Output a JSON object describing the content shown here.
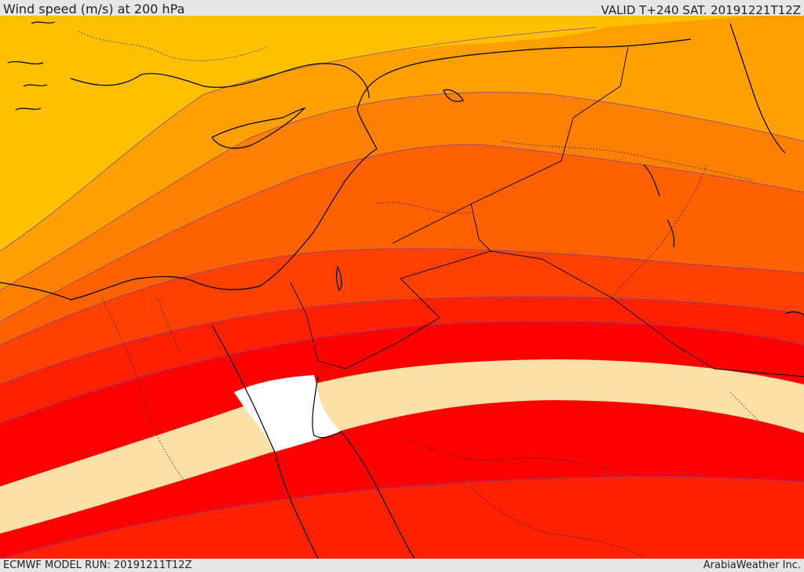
{
  "header": {
    "title": "Wind speed (m/s) at 200 hPa",
    "valid": "VALID T+240 SAT. 20191221T12Z"
  },
  "footer": {
    "model_run": "ECMWF MODEL RUN: 20191211T12Z",
    "credit": "ArabiaWeather Inc."
  },
  "colors": {
    "band_1": "#ffe000",
    "band_2": "#ffc000",
    "band_3": "#ffa000",
    "band_4": "#ff8000",
    "band_5": "#ff6000",
    "band_6": "#ff4000",
    "band_7": "#ff2000",
    "band_8": "#ff0000",
    "band_9": "#fde0a8",
    "band_10": "#ffffff",
    "coastline": "#000000",
    "border": "#000000",
    "contour_line": "#6a3c9c"
  }
}
